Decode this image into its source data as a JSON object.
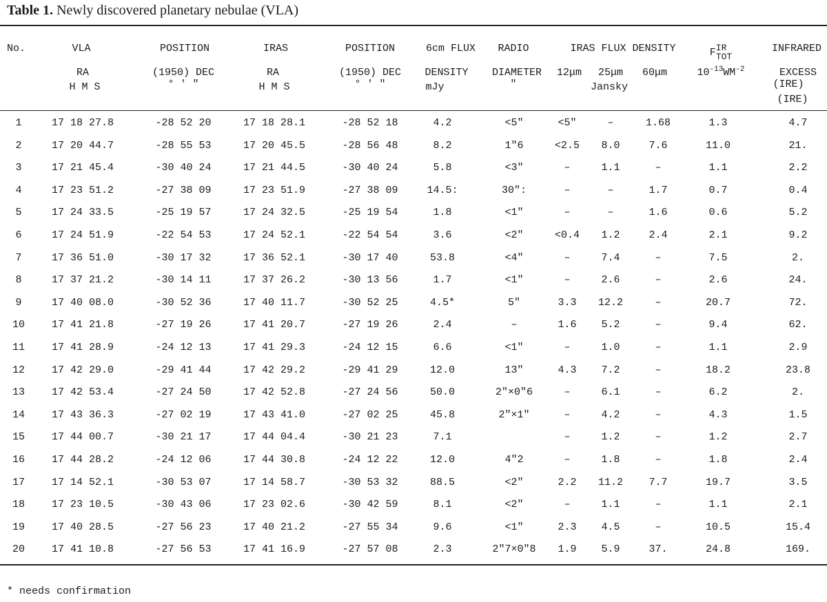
{
  "caption": {
    "label": "Table 1.",
    "text": "Newly discovered planetary nebulae (VLA)"
  },
  "header": {
    "no": "No.",
    "vla": "VLA",
    "vla_ra": "RA",
    "vla_hms": "H  M  S",
    "position": "POSITION",
    "position_dec": "(1950) DEC",
    "dms": "°  '  \"",
    "iras": "IRAS",
    "iras_ra": "RA",
    "iras_hms": "H  M  S",
    "position2": "POSITION",
    "position2_dec": "(1950) DEC",
    "dms2": "°  '  \"",
    "flux_6cm_1": "6cm FLUX",
    "flux_6cm_2": "DENSITY",
    "flux_6cm_3": "mJy",
    "radio_1": "RADIO",
    "radio_2": "DIAMETER",
    "radio_3": "\"",
    "iras_flux": "IRAS FLUX DENSITY",
    "b12": "12μm",
    "b25": "25μm",
    "b60": "60μm",
    "jansky": "Jansky",
    "ftot_F": "F",
    "ftot_IR": "IR",
    "ftot_TOT": "TOT",
    "ftot_unit_base": "10",
    "ftot_unit_exp": "-13",
    "ftot_unit_W": "WM",
    "ftot_unit_exp2": "-2",
    "ire_1": "INFRARED",
    "ire_2": "EXCESS",
    "ire_3": "(IRE)",
    "ire_4": "(IRE)"
  },
  "rows": [
    {
      "no": "1",
      "vla_ra": "17 18 27.8",
      "vla_dec": "-28 52 20",
      "iras_ra": "17 18 28.1",
      "iras_dec": "-28 52 18",
      "flux": "4.2",
      "diam": "<5\"",
      "f12": "<5\"",
      "f25": "–",
      "f60": "1.68",
      "ftot": "1.3",
      "ire": "4.7"
    },
    {
      "no": "2",
      "vla_ra": "17 20 44.7",
      "vla_dec": "-28 55 53",
      "iras_ra": "17 20 45.5",
      "iras_dec": "-28 56 48",
      "flux": "8.2",
      "diam": "1\"6",
      "f12": "<2.5",
      "f25": "8.0",
      "f60": "7.6",
      "ftot": "11.0",
      "ire": "21."
    },
    {
      "no": "3",
      "vla_ra": "17 21 45.4",
      "vla_dec": "-30 40 24",
      "iras_ra": "17 21 44.5",
      "iras_dec": "-30 40 24",
      "flux": "5.8",
      "diam": "<3\"",
      "f12": "–",
      "f25": "1.1",
      "f60": "–",
      "ftot": "1.1",
      "ire": "2.2"
    },
    {
      "no": "4",
      "vla_ra": "17 23 51.2",
      "vla_dec": "-27 38 09",
      "iras_ra": "17 23 51.9",
      "iras_dec": "-27 38 09",
      "flux": "14.5:",
      "diam": "30\":",
      "f12": "–",
      "f25": "–",
      "f60": "1.7",
      "ftot": "0.7",
      "ire": "0.4"
    },
    {
      "no": "5",
      "vla_ra": "17 24 33.5",
      "vla_dec": "-25 19 57",
      "iras_ra": "17 24 32.5",
      "iras_dec": "-25 19 54",
      "flux": "1.8",
      "diam": "<1\"",
      "f12": "–",
      "f25": "–",
      "f60": "1.6",
      "ftot": "0.6",
      "ire": "5.2"
    },
    {
      "no": "6",
      "vla_ra": "17 24 51.9",
      "vla_dec": "-22 54 53",
      "iras_ra": "17 24 52.1",
      "iras_dec": "-22 54 54",
      "flux": "3.6",
      "diam": "<2\"",
      "f12": "<0.4",
      "f25": "1.2",
      "f60": "2.4",
      "ftot": "2.1",
      "ire": "9.2"
    },
    {
      "no": "7",
      "vla_ra": "17 36 51.0",
      "vla_dec": "-30 17 32",
      "iras_ra": "17 36 52.1",
      "iras_dec": "-30 17 40",
      "flux": "53.8",
      "diam": "<4\"",
      "f12": "–",
      "f25": "7.4",
      "f60": "–",
      "ftot": "7.5",
      "ire": "2."
    },
    {
      "no": "8",
      "vla_ra": "17 37 21.2",
      "vla_dec": "-30 14 11",
      "iras_ra": "17 37 26.2",
      "iras_dec": "-30 13 56",
      "flux": "1.7",
      "diam": "<1\"",
      "f12": "–",
      "f25": "2.6",
      "f60": "–",
      "ftot": "2.6",
      "ire": "24."
    },
    {
      "no": "9",
      "vla_ra": "17 40 08.0",
      "vla_dec": "-30 52 36",
      "iras_ra": "17 40 11.7",
      "iras_dec": "-30 52 25",
      "flux": "4.5*",
      "diam": "5\"",
      "f12": "3.3",
      "f25": "12.2",
      "f60": "–",
      "ftot": "20.7",
      "ire": "72."
    },
    {
      "no": "10",
      "vla_ra": "17 41 21.8",
      "vla_dec": "-27 19 26",
      "iras_ra": "17 41 20.7",
      "iras_dec": "-27 19 26",
      "flux": "2.4",
      "diam": "–",
      "f12": "1.6",
      "f25": "5.2",
      "f60": "–",
      "ftot": "9.4",
      "ire": "62."
    },
    {
      "no": "11",
      "vla_ra": "17 41 28.9",
      "vla_dec": "-24 12 13",
      "iras_ra": "17 41 29.3",
      "iras_dec": "-24 12 15",
      "flux": "6.6",
      "diam": "<1\"",
      "f12": "–",
      "f25": "1.0",
      "f60": "–",
      "ftot": "1.1",
      "ire": "2.9"
    },
    {
      "no": "12",
      "vla_ra": "17 42 29.0",
      "vla_dec": "-29 41 44",
      "iras_ra": "17 42 29.2",
      "iras_dec": "-29 41 29",
      "flux": "12.0",
      "diam": "13\"",
      "f12": "4.3",
      "f25": "7.2",
      "f60": "–",
      "ftot": "18.2",
      "ire": "23.8"
    },
    {
      "no": "13",
      "vla_ra": "17 42 53.4",
      "vla_dec": "-27 24 50",
      "iras_ra": "17 42 52.8",
      "iras_dec": "-27 24 56",
      "flux": "50.0",
      "diam": "2\"×0\"6",
      "f12": "–",
      "f25": "6.1",
      "f60": "–",
      "ftot": "6.2",
      "ire": "2."
    },
    {
      "no": "14",
      "vla_ra": "17 43 36.3",
      "vla_dec": "-27 02 19",
      "iras_ra": "17 43 41.0",
      "iras_dec": "-27 02 25",
      "flux": "45.8",
      "diam": "2\"×1\"",
      "f12": "–",
      "f25": "4.2",
      "f60": "–",
      "ftot": "4.3",
      "ire": "1.5"
    },
    {
      "no": "15",
      "vla_ra": "17 44 00.7",
      "vla_dec": "-30 21 17",
      "iras_ra": "17 44 04.4",
      "iras_dec": "-30 21 23",
      "flux": "7.1",
      "diam": "",
      "f12": "–",
      "f25": "1.2",
      "f60": "–",
      "ftot": "1.2",
      "ire": "2.7"
    },
    {
      "no": "16",
      "vla_ra": "17 44 28.2",
      "vla_dec": "-24 12 06",
      "iras_ra": "17 44 30.8",
      "iras_dec": "-24 12 22",
      "flux": "12.0",
      "diam": "4\"2",
      "f12": "–",
      "f25": "1.8",
      "f60": "–",
      "ftot": "1.8",
      "ire": "2.4"
    },
    {
      "no": "17",
      "vla_ra": "17 14 52.1",
      "vla_dec": "-30 53 07",
      "iras_ra": "17 14 58.7",
      "iras_dec": "-30 53 32",
      "flux": "88.5",
      "diam": "<2\"",
      "f12": "2.2",
      "f25": "11.2",
      "f60": "7.7",
      "ftot": "19.7",
      "ire": "3.5"
    },
    {
      "no": "18",
      "vla_ra": "17 23 10.5",
      "vla_dec": "-30 43 06",
      "iras_ra": "17 23 02.6",
      "iras_dec": "-30 42 59",
      "flux": "8.1",
      "diam": "<2\"",
      "f12": "–",
      "f25": "1.1",
      "f60": "–",
      "ftot": "1.1",
      "ire": "2.1"
    },
    {
      "no": "19",
      "vla_ra": "17 40 28.5",
      "vla_dec": "-27 56 23",
      "iras_ra": "17 40 21.2",
      "iras_dec": "-27 55 34",
      "flux": "9.6",
      "diam": "<1\"",
      "f12": "2.3",
      "f25": "4.5",
      "f60": "–",
      "ftot": "10.5",
      "ire": "15.4"
    },
    {
      "no": "20",
      "vla_ra": "17 41 10.8",
      "vla_dec": "-27 56 53",
      "iras_ra": "17 41 16.9",
      "iras_dec": "-27 57 08",
      "flux": "2.3",
      "diam": "2\"7×0\"8",
      "f12": "1.9",
      "f25": "5.9",
      "f60": "37.",
      "ftot": "24.8",
      "ire": "169."
    }
  ],
  "footnote": "* needs confirmation"
}
